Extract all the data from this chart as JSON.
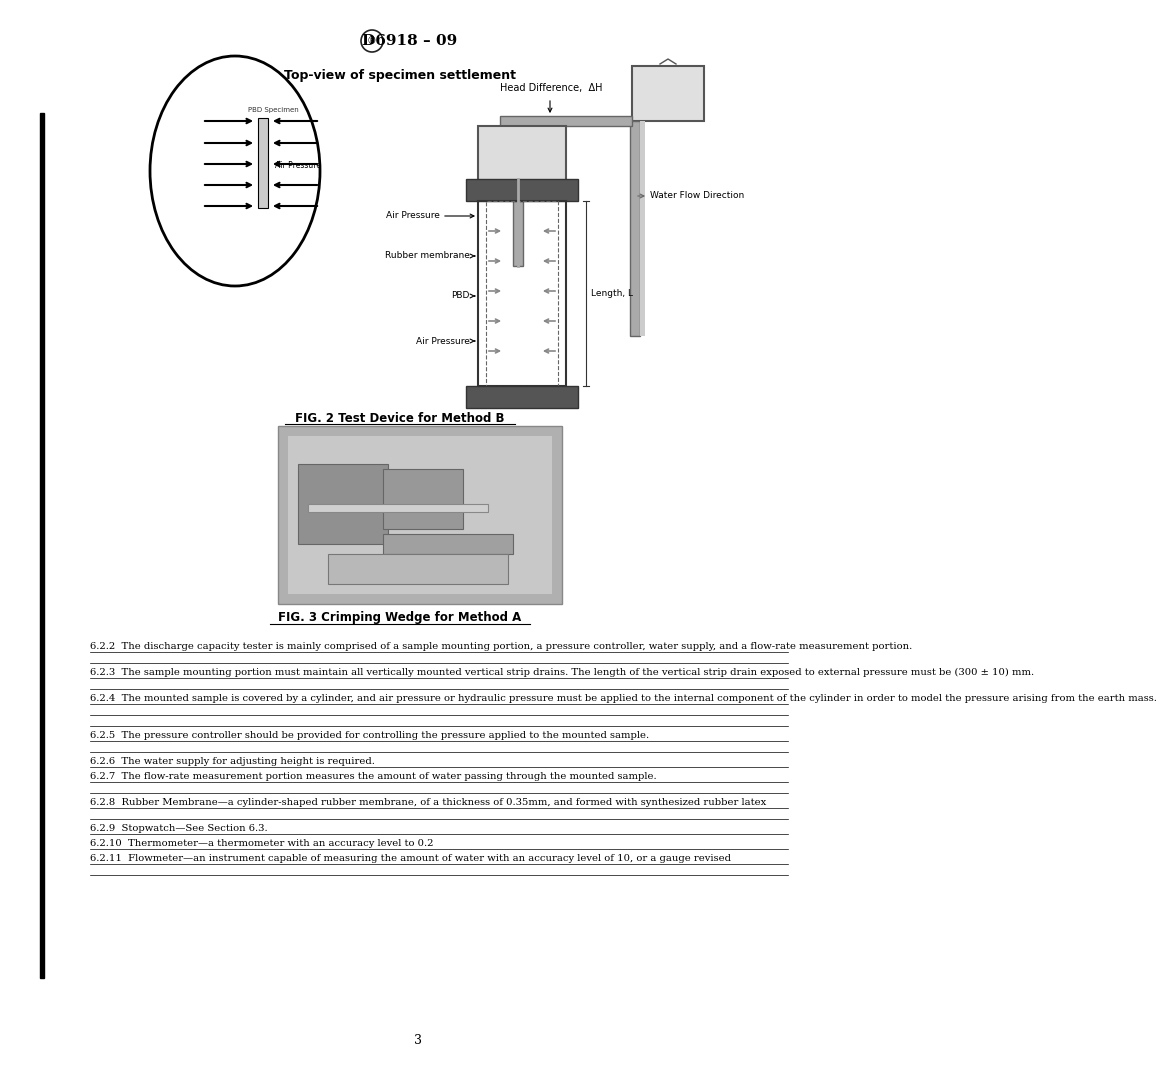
{
  "title": "D6918 – 09",
  "fig2_caption": "FIG. 2 Test Device for Method B",
  "fig3_caption": "FIG. 3 Crimping Wedge for Method A",
  "fig2_subtitle": "Top-view of specimen settlement",
  "page_number": "3",
  "background_color": "#ffffff",
  "text_color": "#000000",
  "paragraphs": [
    {
      "id": "6.2.2",
      "text": "6.2.2  The discharge capacity tester is mainly comprised of a sample mounting portion, a pressure controller, water supply, and a flow-rate measurement portion.",
      "indent": true
    },
    {
      "id": "6.2.3",
      "text": "6.2.3  The sample mounting portion must maintain all vertically mounted vertical strip drains. The length of the vertical strip drain exposed to external pressure must be (300 ± 10) mm.",
      "indent": true
    },
    {
      "id": "6.2.4",
      "text": "6.2.4  The mounted sample is covered by a cylinder, and air pressure or hydraulic pressure must be applied to the internal component of the cylinder in order to model the pressure arising from the earth mass.",
      "indent": true
    },
    {
      "id": "6.2.5",
      "text": "6.2.5  The pressure controller should be provided for controlling the pressure applied to the mounted sample.",
      "indent": true
    },
    {
      "id": "6.2.6",
      "text": "6.2.6  The water supply for adjusting height is required.",
      "indent": true
    },
    {
      "id": "6.2.7",
      "text": "6.2.7  The flow-rate measurement portion measures the amount of water passing through the mounted sample.",
      "indent": true
    },
    {
      "id": "6.2.8",
      "text": "6.2.8  Rubber Membrane—a cylinder-shaped rubber membrane, of a thickness of 0.35mm, and formed with synthesized rubber latex",
      "indent": true,
      "italic_part": "Rubber Membrane"
    },
    {
      "id": "6.2.9",
      "text": "6.2.9  Stopwatch—See Section 6.3.",
      "indent": true,
      "italic_part": "Stopwatch"
    },
    {
      "id": "6.2.10",
      "text": "6.2.10  Thermometer—a thermometer with an accuracy level to 0.2",
      "indent": true,
      "italic_part": "Thermometer"
    },
    {
      "id": "6.2.11",
      "text": "6.2.11  Flowmeter—an instrument capable of measuring the amount of water with an accuracy level of 10, or a gauge revised",
      "indent": true,
      "italic_part": "Flowmeter"
    }
  ]
}
